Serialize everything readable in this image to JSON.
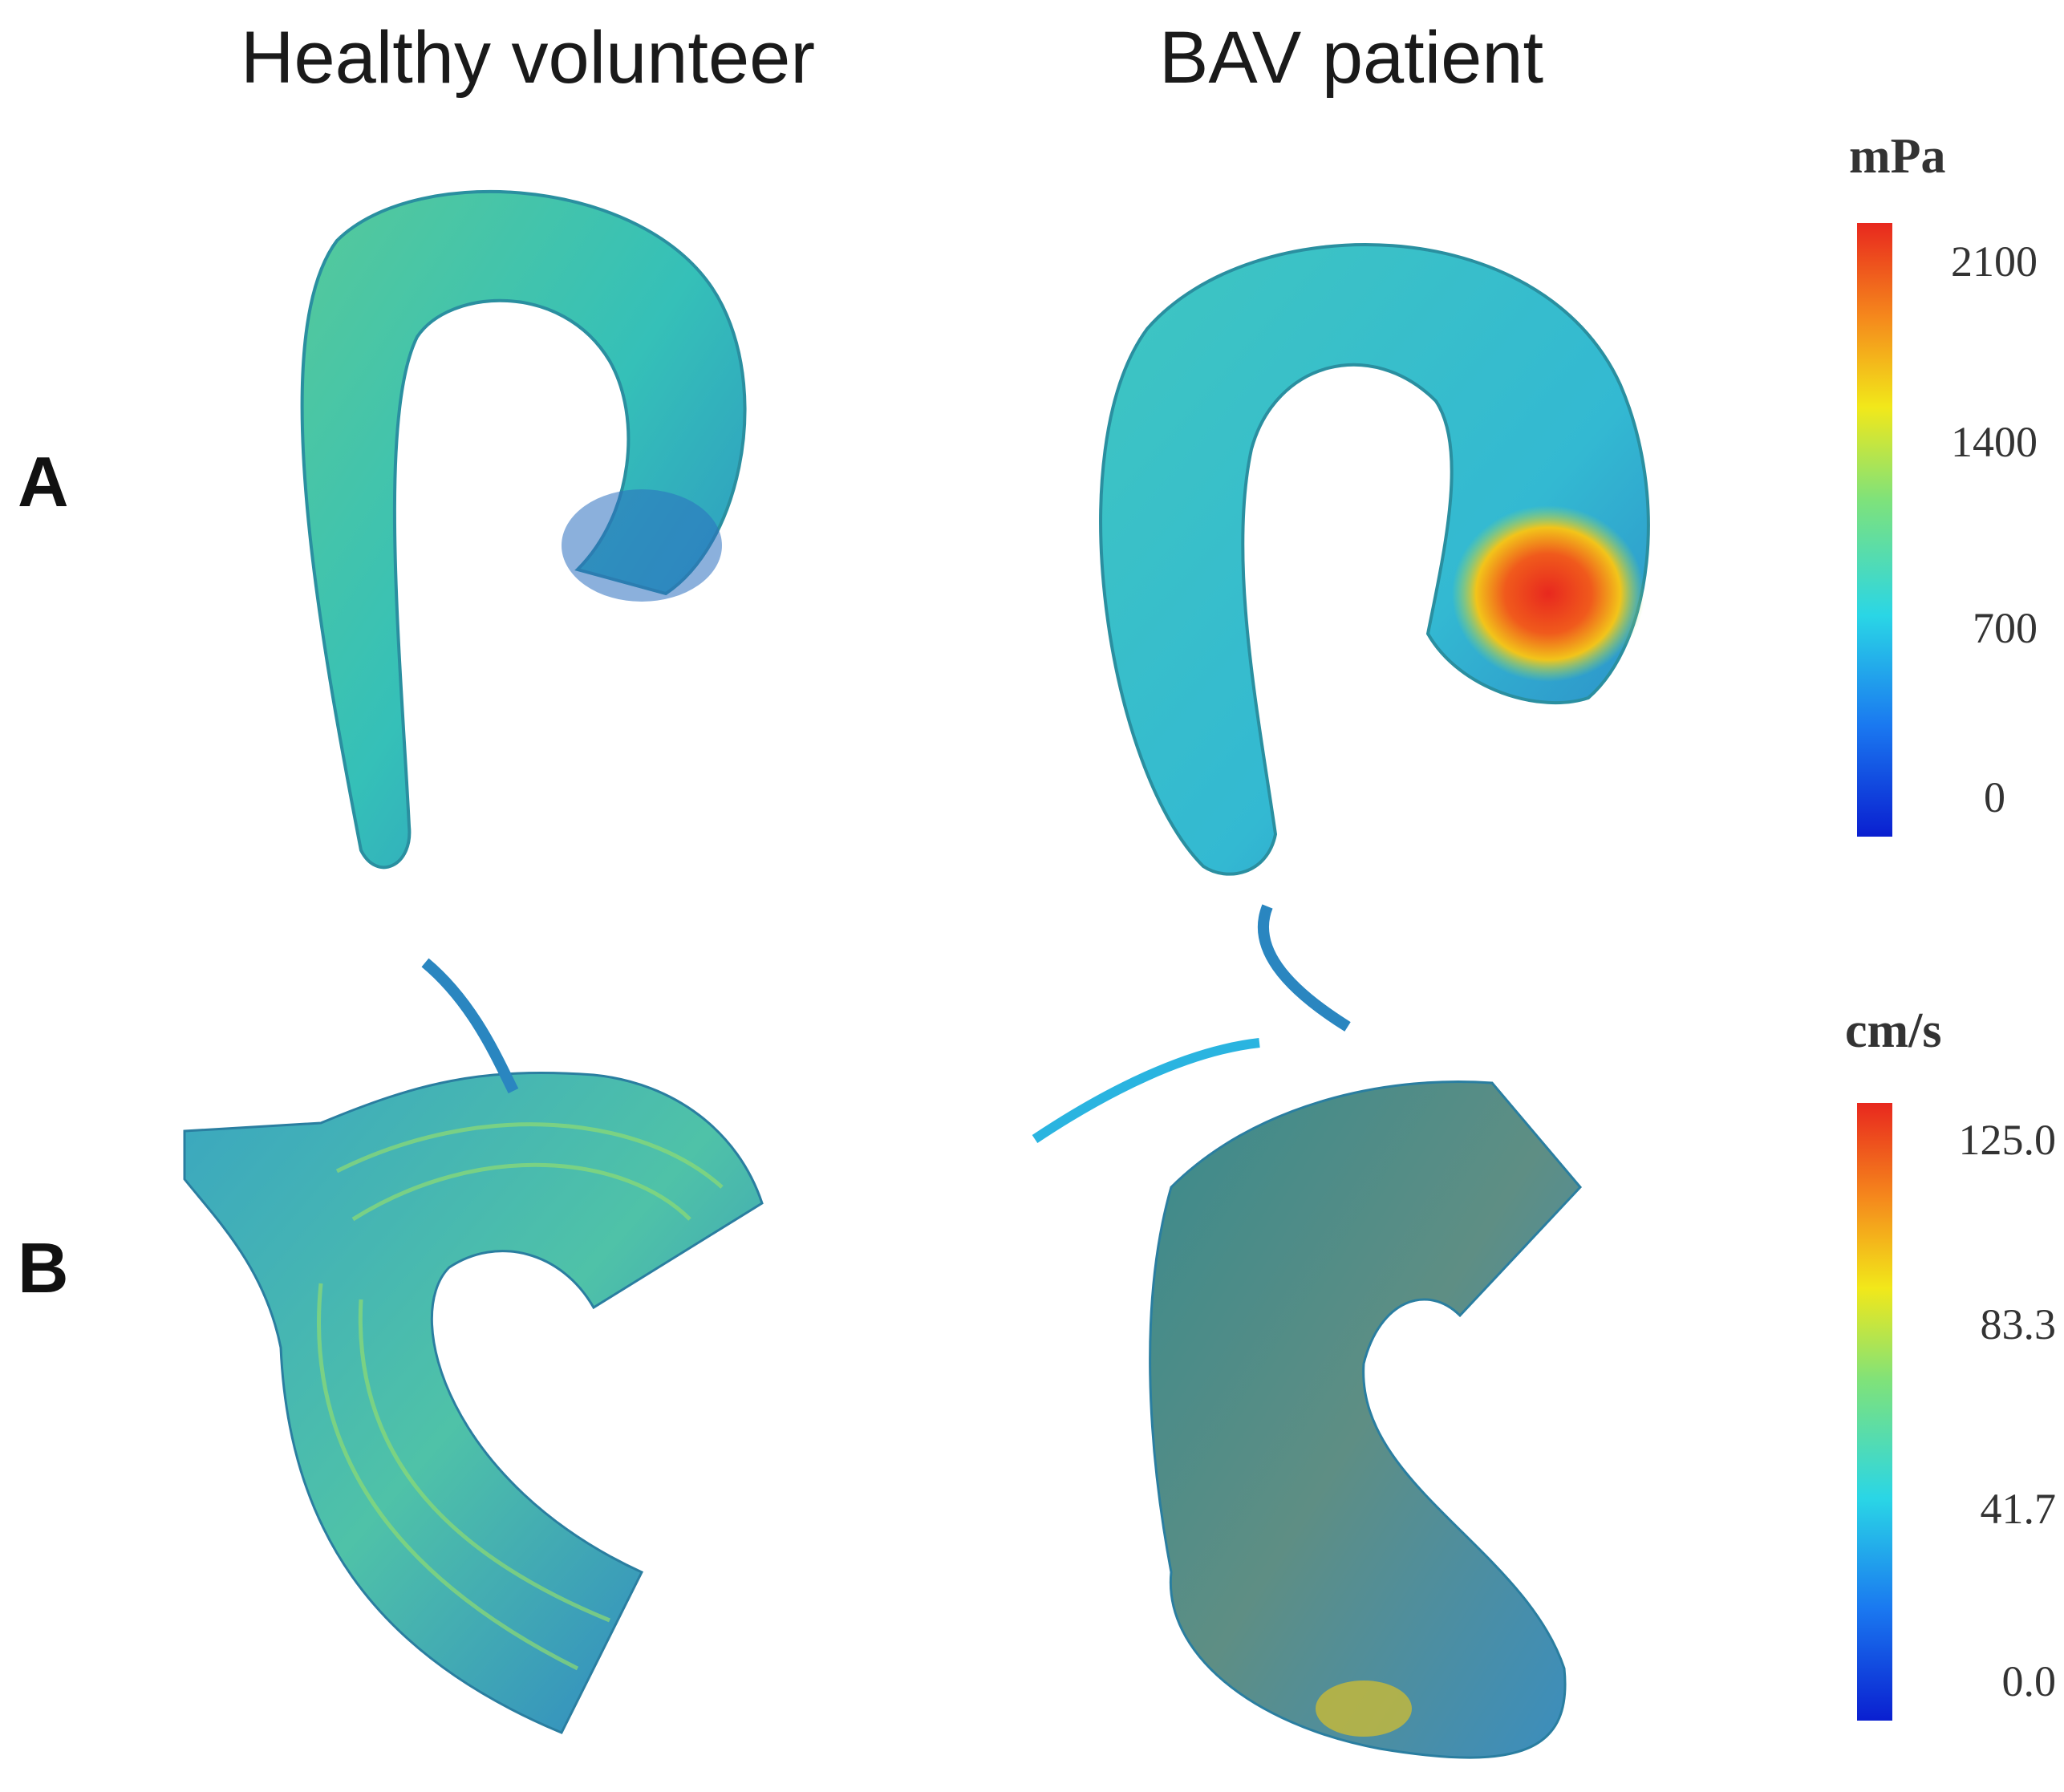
{
  "columns": [
    "Healthy volunteer",
    "BAV patient"
  ],
  "rows": [
    "A",
    "B"
  ],
  "colorbars": [
    {
      "unit": "mPa",
      "ticks": [
        "2100",
        "1400",
        "700",
        "0"
      ]
    },
    {
      "unit": "cm/s",
      "ticks": [
        "125.0",
        "83.3",
        "41.7",
        "0.0"
      ]
    }
  ],
  "colors": {
    "jet_low": "#0a1fd0",
    "jet_cyan": "#2ad6e6",
    "jet_mid": "#9fe05a",
    "jet_yellow": "#f2e81a",
    "jet_high": "#e8281e",
    "aorta_surface": "#33c2b6"
  }
}
